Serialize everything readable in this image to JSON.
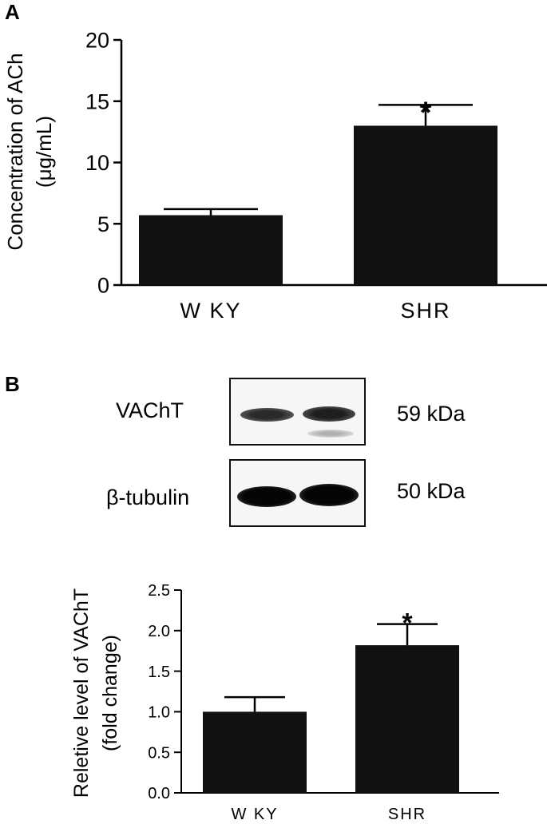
{
  "panels": {
    "a_letter": "A",
    "b_letter": "B"
  },
  "blot": {
    "rows": [
      {
        "protein": "VAChT",
        "size": "59 kDa"
      },
      {
        "protein": "β-tubulin",
        "size": "50 kDa"
      }
    ]
  },
  "chart_data": [
    {
      "type": "bar",
      "categories": [
        "WKY",
        "SHR"
      ],
      "category_labels": [
        "W KY",
        "SHR"
      ],
      "values": [
        5.7,
        13.0
      ],
      "errors": [
        0.5,
        1.7
      ],
      "annotations": [
        "",
        "*"
      ],
      "ylabel": [
        "Concentration of ACh",
        "(μg/mL)"
      ],
      "ylim": [
        0,
        20
      ],
      "yticks": [
        0,
        5,
        10,
        15,
        20
      ],
      "ytick_labels": [
        "0",
        "5",
        "10",
        "15",
        "20"
      ],
      "bar_color": "#111111"
    },
    {
      "type": "bar",
      "categories": [
        "WKY",
        "SHR"
      ],
      "category_labels": [
        "W KY",
        "SHR"
      ],
      "values": [
        1.0,
        1.82
      ],
      "errors": [
        0.18,
        0.26
      ],
      "annotations": [
        "",
        "*"
      ],
      "ylabel": [
        "Reletive level of VAChT",
        "(fold change)"
      ],
      "ylim": [
        0,
        2.5
      ],
      "yticks": [
        0,
        0.5,
        1.0,
        1.5,
        2.0,
        2.5
      ],
      "ytick_labels": [
        "0.0",
        "0.5",
        "1.0",
        "1.5",
        "2.0",
        "2.5"
      ],
      "bar_color": "#111111"
    }
  ]
}
